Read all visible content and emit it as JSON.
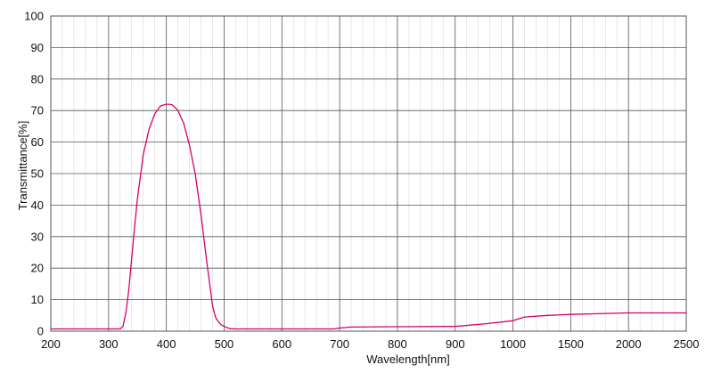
{
  "chart_data": {
    "type": "line",
    "xlabel": "Wavelength[nm]",
    "ylabel": "Transmittance[%]",
    "ylim": [
      0,
      100
    ],
    "x_ticks": [
      "200",
      "300",
      "400",
      "500",
      "600",
      "700",
      "800",
      "900",
      "1000",
      "1500",
      "2000",
      "2500"
    ],
    "y_ticks": [
      "0",
      "10",
      "20",
      "30",
      "40",
      "50",
      "60",
      "70",
      "80",
      "90",
      "100"
    ],
    "grid": true,
    "minor_grid": true,
    "line_color": "#d4006e",
    "series": [
      {
        "x": [
          200,
          300,
          315,
          320,
          325,
          330,
          335,
          340,
          345,
          350,
          360,
          370,
          380,
          390,
          400,
          405,
          410,
          415,
          420,
          430,
          440,
          450,
          460,
          470,
          480,
          485,
          490,
          495,
          500,
          510,
          520,
          530,
          600,
          690,
          700,
          720,
          800,
          900,
          950,
          1000,
          1100,
          1300,
          1500,
          1700,
          2000,
          2500
        ],
        "y": [
          0.7,
          0.7,
          0.7,
          0.7,
          1.5,
          6,
          13,
          23,
          33,
          42,
          56,
          64,
          69,
          71.5,
          72,
          72,
          71.8,
          71,
          70,
          66,
          59,
          50,
          37,
          22,
          8,
          4.5,
          3,
          2,
          1.5,
          0.8,
          0.7,
          0.7,
          0.7,
          0.7,
          1,
          1.3,
          1.4,
          1.5,
          2.3,
          3.3,
          4.5,
          5,
          5.3,
          5.5,
          5.8,
          5.8
        ]
      }
    ]
  }
}
